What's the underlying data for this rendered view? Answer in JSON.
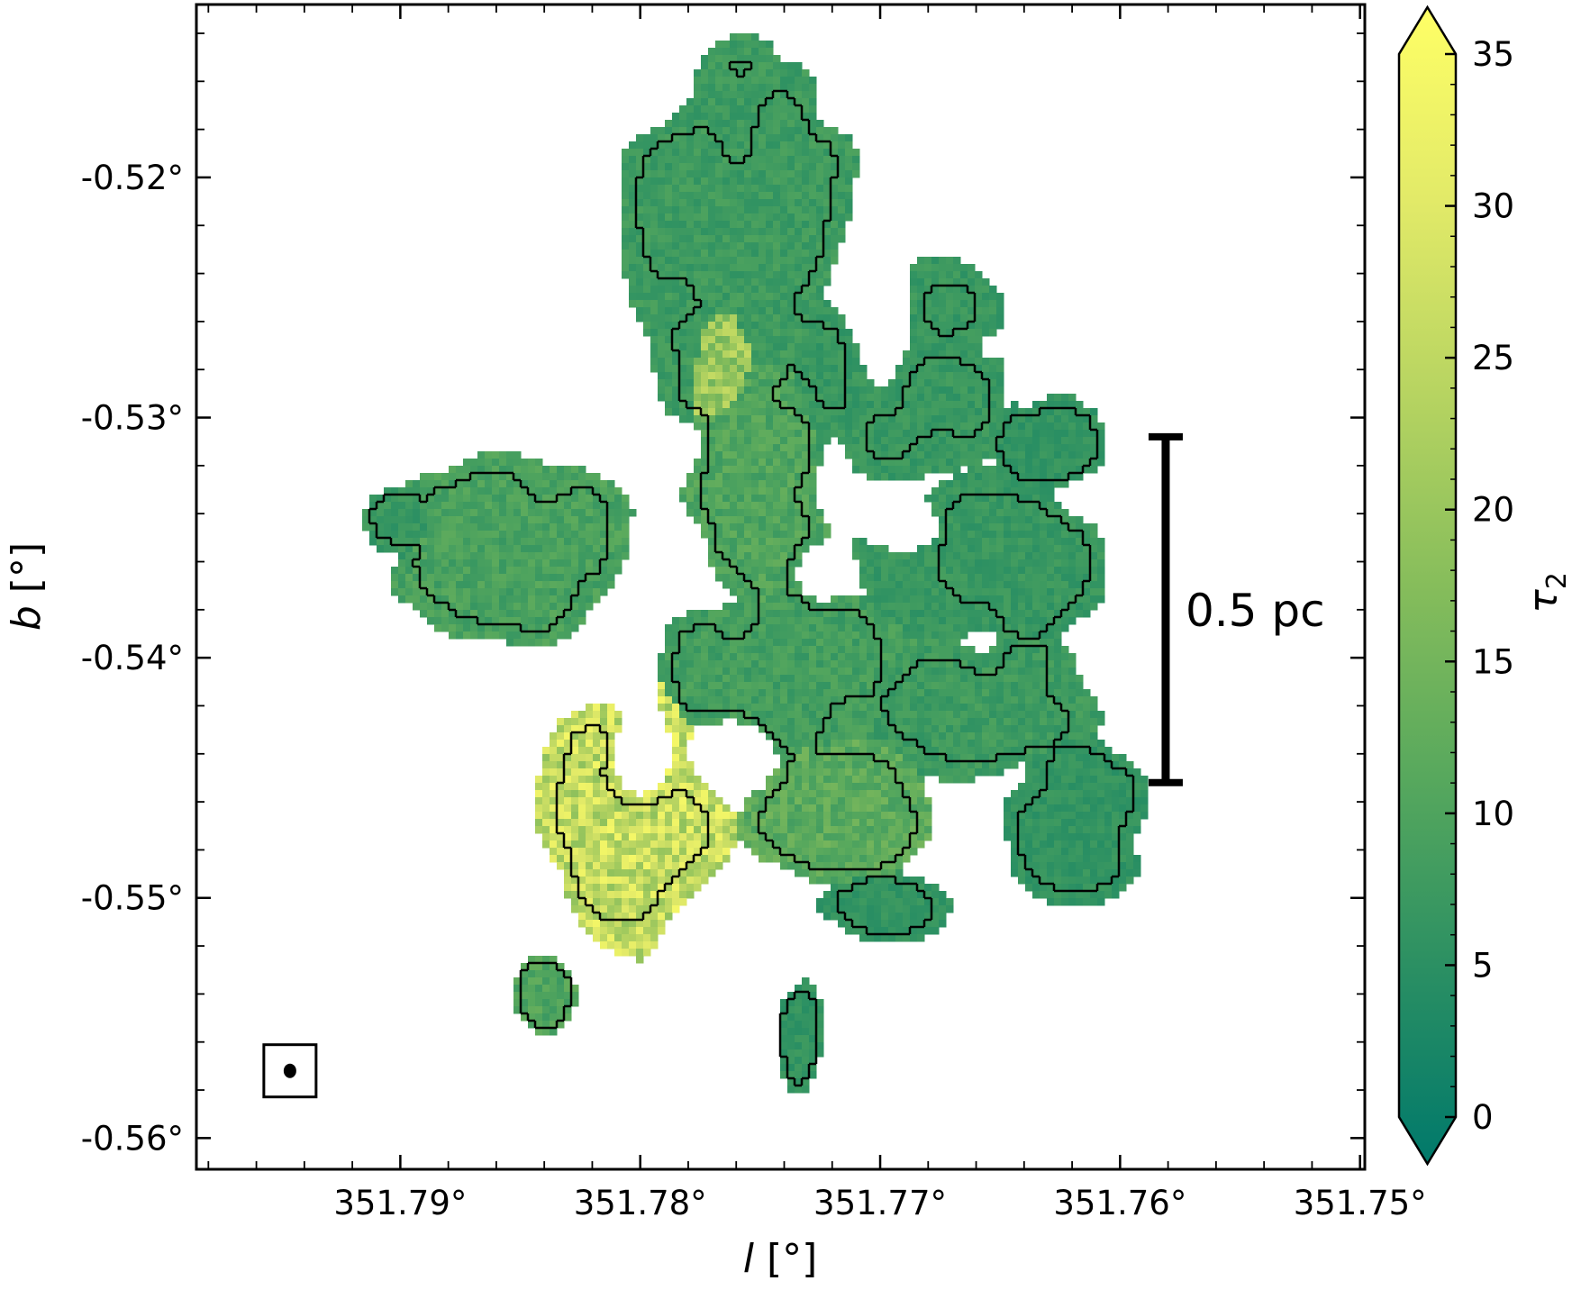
{
  "chart_data": {
    "type": "heatmap",
    "title": "",
    "xlabel": {
      "var": "l",
      "unit": " [°]"
    },
    "ylabel": {
      "var": "b",
      "unit": " [°]"
    },
    "xlim": [
      351.7985,
      351.7498
    ],
    "ylim": [
      -0.5613,
      -0.5128
    ],
    "x_reversed": true,
    "x_ticks": [
      351.79,
      351.78,
      351.77,
      351.76,
      351.75
    ],
    "x_tick_labels": [
      "351.79°",
      "351.78°",
      "351.77°",
      "351.76°",
      "351.75°"
    ],
    "y_ticks": [
      -0.52,
      -0.53,
      -0.54,
      -0.55,
      -0.56
    ],
    "y_tick_labels": [
      "-0.52°",
      "-0.53°",
      "-0.54°",
      "-0.55°",
      "-0.56°"
    ],
    "grid": false,
    "colorbar": {
      "label": {
        "var": "τ",
        "sub": "2"
      },
      "range": [
        0,
        35
      ],
      "ticks": [
        0,
        5,
        10,
        15,
        20,
        25,
        30,
        35
      ],
      "tick_labels": [
        "0",
        "5",
        "10",
        "15",
        "20",
        "25",
        "30",
        "35"
      ],
      "extend": "both",
      "colormap": [
        "#00796b",
        "#2a8f63",
        "#57a85d",
        "#86bd5b",
        "#b7d461",
        "#e2ea68",
        "#ffff66"
      ]
    },
    "scale_bar": {
      "label": "0.5 pc",
      "length_deg": -0.0144,
      "x": 351.7581,
      "y_top": -0.5308,
      "y_bottom": -0.5452
    },
    "beam": {
      "x": 351.7946,
      "y": -0.5572
    },
    "emission_regions": [
      {
        "name": "northern-filament",
        "cx": 351.7755,
        "cy": -0.523,
        "sx": 0.0035,
        "sy": 0.0055,
        "tau": 9,
        "contour": true
      },
      {
        "name": "northern-ridge-bright",
        "cx": 351.7764,
        "cy": -0.5272,
        "sx": 0.0012,
        "sy": 0.003,
        "tau": 24,
        "contour": false
      },
      {
        "name": "north-east-arm",
        "cx": 351.77,
        "cy": -0.5275,
        "sx": 0.0035,
        "sy": 0.004,
        "tau": 8,
        "contour": true
      },
      {
        "name": "central-ridge",
        "cx": 351.775,
        "cy": -0.532,
        "sx": 0.002,
        "sy": 0.005,
        "tau": 12,
        "contour": true
      },
      {
        "name": "western-arm",
        "cx": 351.7855,
        "cy": -0.5355,
        "sx": 0.0035,
        "sy": 0.0025,
        "tau": 11,
        "contour": true
      },
      {
        "name": "central-hub",
        "cx": 351.774,
        "cy": -0.541,
        "sx": 0.004,
        "sy": 0.003,
        "tau": 10,
        "contour": true
      },
      {
        "name": "eastern-lobe",
        "cx": 351.766,
        "cy": -0.536,
        "sx": 0.0035,
        "sy": 0.0025,
        "tau": 8,
        "contour": true
      },
      {
        "name": "east-north-knot",
        "cx": 351.763,
        "cy": -0.531,
        "sx": 0.0015,
        "sy": 0.0015,
        "tau": 7,
        "contour": true
      },
      {
        "name": "south-east-arm",
        "cx": 351.766,
        "cy": -0.542,
        "sx": 0.004,
        "sy": 0.002,
        "tau": 9,
        "contour": true
      },
      {
        "name": "south-west-bright-filament",
        "cx": 351.78,
        "cy": -0.546,
        "sx": 0.0025,
        "sy": 0.004,
        "tau": 32,
        "contour": true
      },
      {
        "name": "south-centre",
        "cx": 351.772,
        "cy": -0.546,
        "sx": 0.0025,
        "sy": 0.0025,
        "tau": 14,
        "contour": true
      },
      {
        "name": "south-east-knot",
        "cx": 351.762,
        "cy": -0.5465,
        "sx": 0.002,
        "sy": 0.0025,
        "tau": 7,
        "contour": true
      },
      {
        "name": "southern-blob",
        "cx": 351.77,
        "cy": -0.5505,
        "sx": 0.002,
        "sy": 0.001,
        "tau": 7,
        "contour": true
      },
      {
        "name": "south-tail",
        "cx": 351.7733,
        "cy": -0.5555,
        "sx": 0.0006,
        "sy": 0.0016,
        "tau": 7,
        "contour": true
      },
      {
        "name": "south-west-clump",
        "cx": 351.784,
        "cy": -0.554,
        "sx": 0.0008,
        "sy": 0.001,
        "tau": 12,
        "contour": true
      },
      {
        "name": "far-west-knot",
        "cx": 351.79,
        "cy": -0.5345,
        "sx": 0.001,
        "sy": 0.001,
        "tau": 8,
        "contour": false
      }
    ],
    "cavities": [
      {
        "cx": 351.77,
        "cy": -0.526,
        "sx": 0.0015,
        "sy": 0.003
      },
      {
        "cx": 351.78,
        "cy": -0.544,
        "sx": 0.001,
        "sy": 0.0015
      },
      {
        "cx": 351.776,
        "cy": -0.544,
        "sx": 0.0015,
        "sy": 0.0012
      },
      {
        "cx": 351.769,
        "cy": -0.5345,
        "sx": 0.001,
        "sy": 0.0008
      },
      {
        "cx": 351.7725,
        "cy": -0.5365,
        "sx": 0.0008,
        "sy": 0.0008
      }
    ]
  }
}
